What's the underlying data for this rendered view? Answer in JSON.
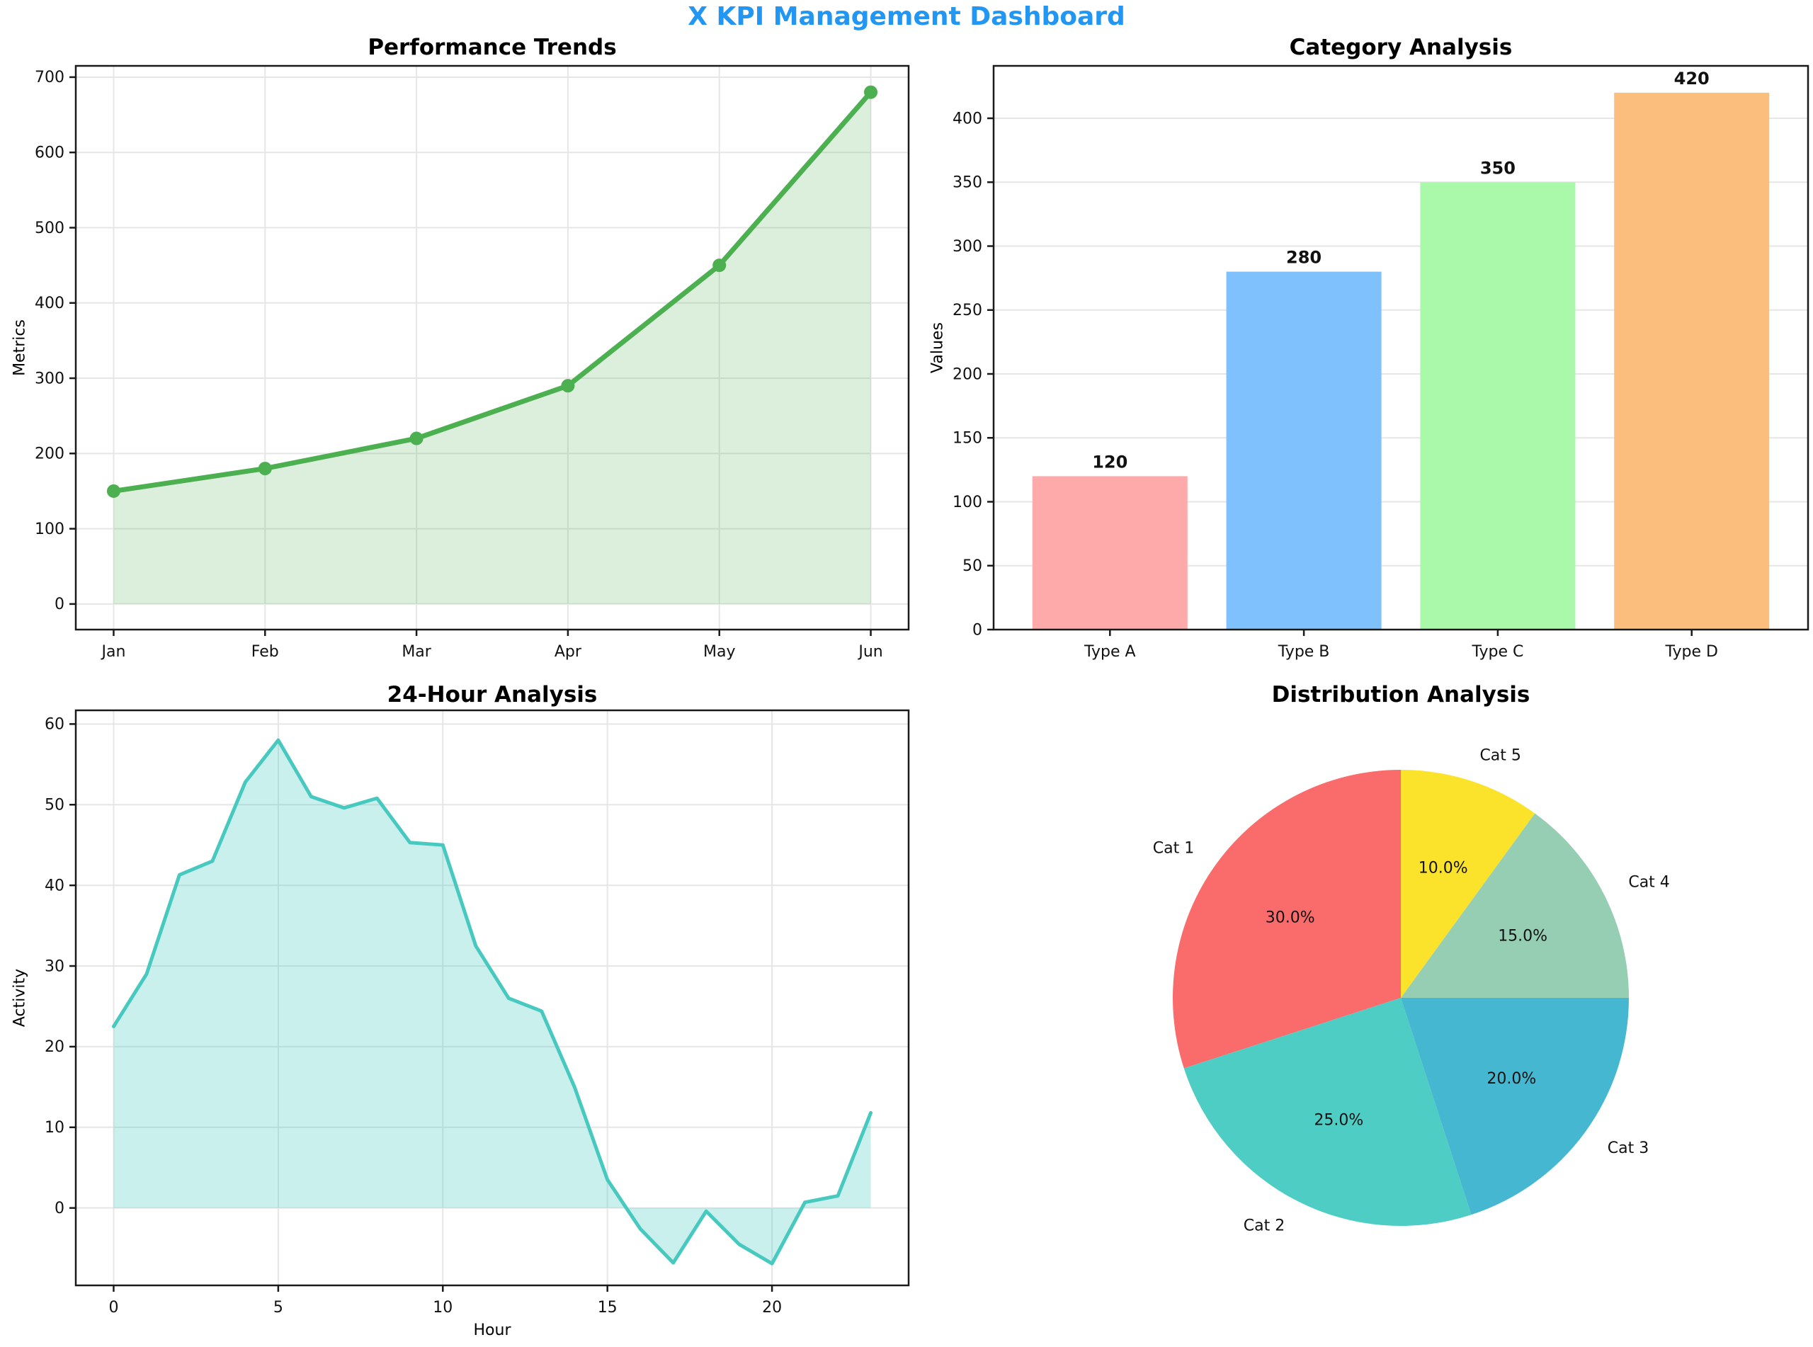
{
  "dashboard": {
    "title": "X KPI Management Dashboard",
    "title_color": "#2196F3",
    "background": "#FFFFFF"
  },
  "chart_data": [
    {
      "id": "performance-trends",
      "type": "area",
      "title": "Performance Trends",
      "xlabel": "",
      "ylabel": "Metrics",
      "categories": [
        "Jan",
        "Feb",
        "Mar",
        "Apr",
        "May",
        "Jun"
      ],
      "values": [
        150,
        180,
        220,
        290,
        450,
        680
      ],
      "yticks": [
        0,
        100,
        200,
        300,
        400,
        500,
        600,
        700
      ],
      "xlim": [
        -0.25,
        5.25
      ],
      "ylim": [
        -34,
        715
      ],
      "grid": "both",
      "line_color": "#4CAF50",
      "fill_color": "rgba(76,175,80,0.2)",
      "markers": true
    },
    {
      "id": "category-analysis",
      "type": "bar",
      "title": "Category Analysis",
      "xlabel": "",
      "ylabel": "Values",
      "categories": [
        "Type A",
        "Type B",
        "Type C",
        "Type D"
      ],
      "values": [
        120,
        280,
        350,
        420
      ],
      "value_labels": [
        "120",
        "280",
        "350",
        "420"
      ],
      "bar_colors": [
        "#FFAAAA",
        "#7FC1FC",
        "#AAF9AA",
        "#FBBE7D"
      ],
      "yticks": [
        0,
        50,
        100,
        150,
        200,
        250,
        300,
        350,
        400
      ],
      "xlim": [
        -0.6,
        3.6
      ],
      "ylim": [
        0,
        441
      ],
      "bar_width": 0.8,
      "grid": "y"
    },
    {
      "id": "24-hour-analysis",
      "type": "area",
      "title": "24-Hour Analysis",
      "xlabel": "Hour",
      "ylabel": "Activity",
      "x": [
        0,
        1,
        2,
        3,
        4,
        5,
        6,
        7,
        8,
        9,
        10,
        11,
        12,
        13,
        14,
        15,
        16,
        17,
        18,
        19,
        20,
        21,
        22,
        23
      ],
      "values": [
        22.5,
        29,
        41.3,
        43,
        52.8,
        58,
        51,
        49.6,
        50.8,
        45.3,
        45,
        32.5,
        26,
        24.4,
        15,
        3.5,
        -2.6,
        -6.8,
        -0.4,
        -4.5,
        -6.9,
        0.7,
        1.5,
        11.8
      ],
      "xticks": [
        0,
        5,
        10,
        15,
        20
      ],
      "yticks": [
        0,
        10,
        20,
        30,
        40,
        50,
        60
      ],
      "xlim": [
        -1.15,
        24.15
      ],
      "ylim": [
        -9.6,
        61.7
      ],
      "grid": "both",
      "line_color": "#48C9C0",
      "fill_color": "rgba(78,205,196,0.3)",
      "markers": false
    },
    {
      "id": "distribution-analysis",
      "type": "pie",
      "title": "Distribution Analysis",
      "labels": [
        "Cat 1",
        "Cat 2",
        "Cat 3",
        "Cat 4",
        "Cat 5"
      ],
      "values": [
        30,
        25,
        20,
        15,
        10
      ],
      "pct_labels": [
        "30.0%",
        "25.0%",
        "20.0%",
        "15.0%",
        "10.0%"
      ],
      "colors": [
        "#FA6B6B",
        "#4ECDC4",
        "#45B7D1",
        "#96CEB4",
        "#FBE22B"
      ],
      "start_angle": 90,
      "counterclock": true,
      "label_distance": 1.12,
      "pct_distance": 0.6
    }
  ]
}
